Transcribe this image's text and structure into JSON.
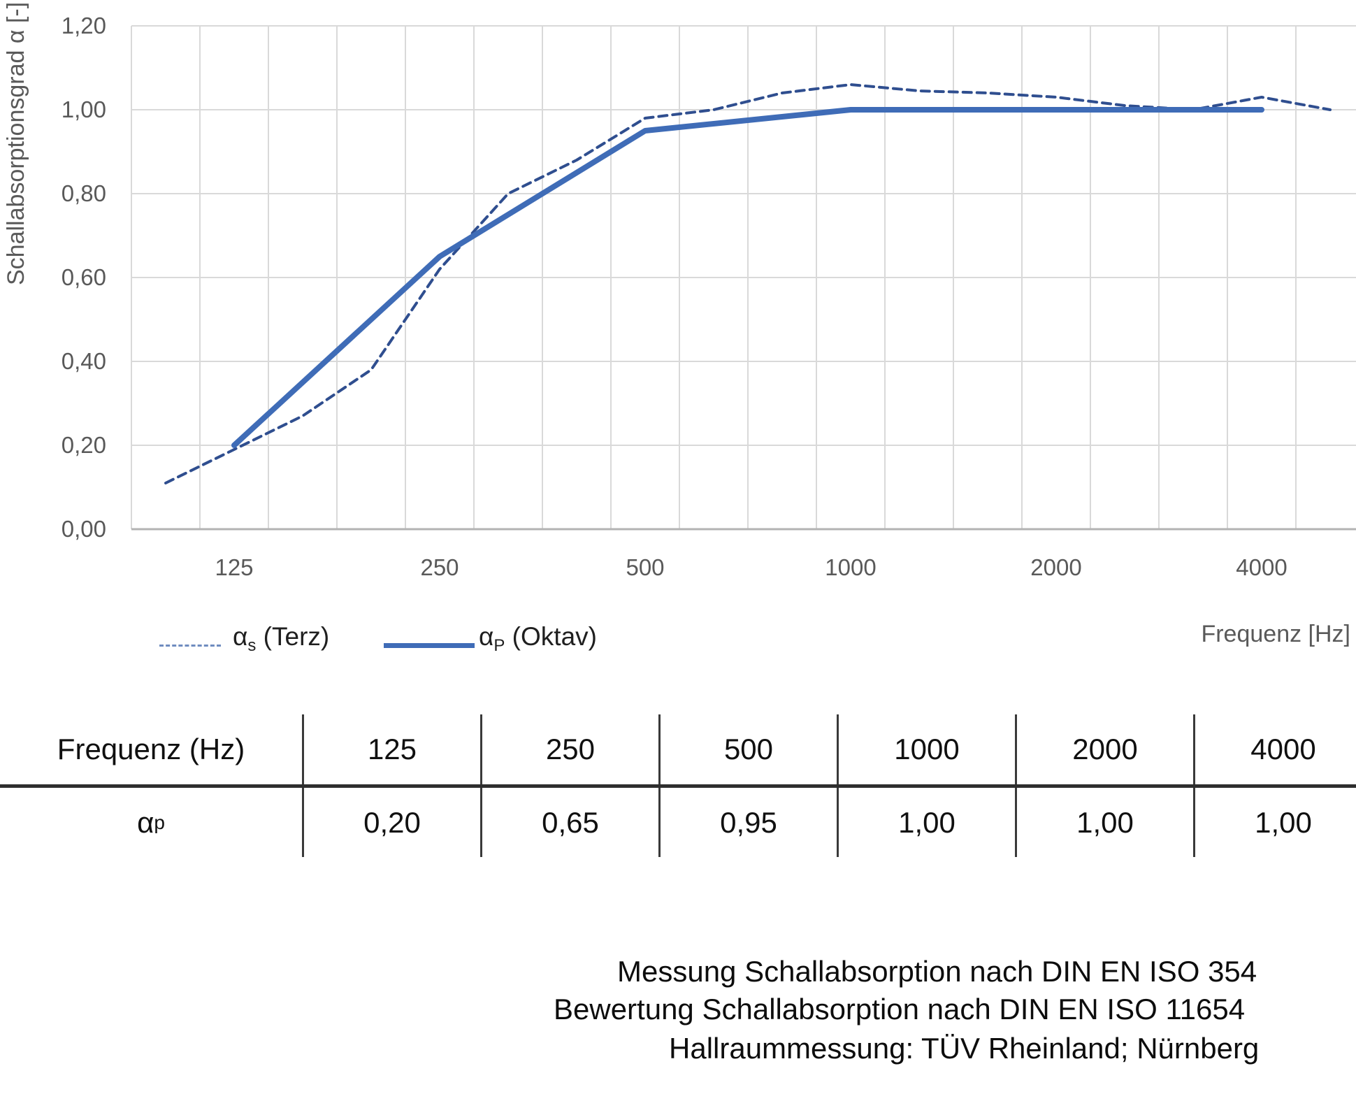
{
  "chart_data": {
    "type": "line",
    "title": "",
    "xlabel": "Frequenz [Hz]",
    "ylabel": "Schallabsorptionsgrad α [-]",
    "ylim": [
      0,
      1.2
    ],
    "grid": true,
    "legend_position": "bottom-left",
    "x_categories": [
      "100",
      "125",
      "160",
      "200",
      "250",
      "315",
      "400",
      "500",
      "630",
      "800",
      "1000",
      "1250",
      "1600",
      "2000",
      "2500",
      "3150",
      "4000",
      "5000"
    ],
    "x_tick_labels": [
      "125",
      "250",
      "500",
      "1000",
      "2000",
      "4000"
    ],
    "y_ticks": [
      {
        "v": 1.2,
        "label": "1,20"
      },
      {
        "v": 1.0,
        "label": "1,00"
      },
      {
        "v": 0.8,
        "label": "0,80"
      },
      {
        "v": 0.6,
        "label": "0,60"
      },
      {
        "v": 0.4,
        "label": "0,40"
      },
      {
        "v": 0.2,
        "label": "0,20"
      },
      {
        "v": 0.0,
        "label": "0,00"
      }
    ],
    "series": [
      {
        "name": "αs (Terz)",
        "style": "dashed",
        "color": "#2f4e8f",
        "x": [
          "100",
          "125",
          "160",
          "200",
          "250",
          "315",
          "400",
          "500",
          "630",
          "800",
          "1000",
          "1250",
          "1600",
          "2000",
          "2500",
          "3150",
          "4000",
          "5000"
        ],
        "values": [
          0.11,
          0.19,
          0.27,
          0.38,
          0.62,
          0.8,
          0.88,
          0.98,
          1.0,
          1.04,
          1.06,
          1.045,
          1.04,
          1.03,
          1.01,
          1.0,
          1.03,
          1.0
        ]
      },
      {
        "name": "αP (Oktav)",
        "style": "solid",
        "color": "#3f6cb7",
        "x": [
          "125",
          "250",
          "500",
          "1000",
          "2000",
          "4000"
        ],
        "values": [
          0.2,
          0.65,
          0.95,
          1.0,
          1.0,
          1.0
        ]
      }
    ]
  },
  "axes": {
    "y_title": "Schallabsorptionsgrad α [-]",
    "x_title": "Frequenz [Hz]"
  },
  "legend": {
    "items": [
      {
        "alpha": "α",
        "sub": "s",
        "rest": " (Terz)"
      },
      {
        "alpha": "α",
        "sub": "P",
        "rest": " (Oktav)"
      }
    ]
  },
  "table": {
    "header_label": "Frequenz (Hz)",
    "frequencies": [
      "125",
      "250",
      "500",
      "1000",
      "2000",
      "4000"
    ],
    "row_label_alpha": "α",
    "row_label_sub": "p",
    "values": [
      "0,20",
      "0,65",
      "0,95",
      "1,00",
      "1,00",
      "1,00"
    ]
  },
  "footer": {
    "lines": [
      "Messung Schallabsorption nach DIN EN ISO 354",
      "Bewertung Schallabsorption nach DIN EN ISO 11654",
      "Hallraummessung: TÜV Rheinland; Nürnberg"
    ]
  }
}
